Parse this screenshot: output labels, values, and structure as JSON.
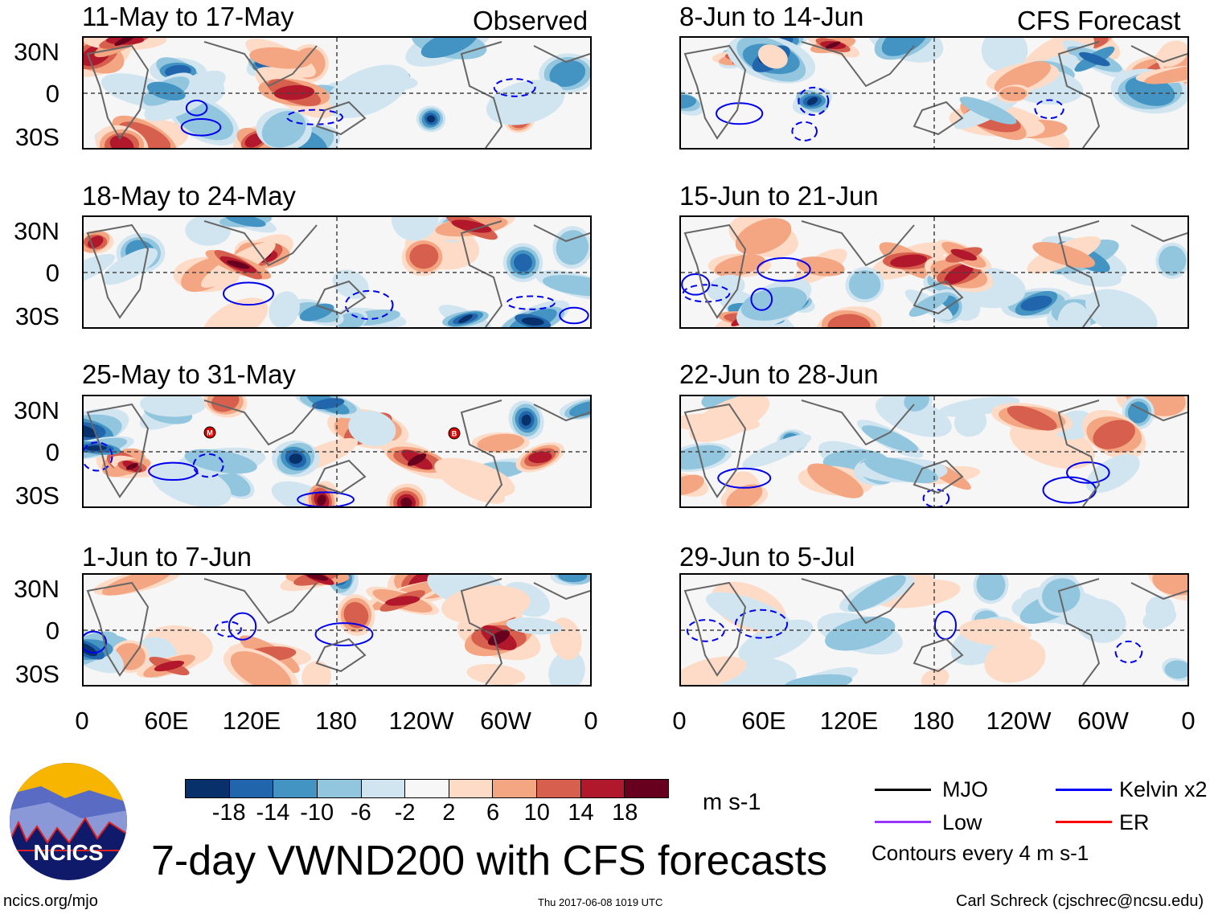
{
  "observed_label": "Observed",
  "forecast_label": "CFS Forecast",
  "panels_observed": [
    "11-May to 17-May",
    "18-May to 24-May",
    "25-May to 31-May",
    "1-Jun to 7-Jun"
  ],
  "panels_forecast": [
    "8-Jun to 14-Jun",
    "15-Jun to 21-Jun",
    "22-Jun to 28-Jun",
    "29-Jun to 5-Jul"
  ],
  "lat_labels": [
    "30N",
    "0",
    "30S"
  ],
  "lon_labels": [
    "0",
    "60E",
    "120E",
    "180",
    "120W",
    "60W",
    "0"
  ],
  "storm_markers": [
    "M",
    "B"
  ],
  "colorbar": {
    "colors": [
      "#08306b",
      "#2166ac",
      "#4393c3",
      "#92c5de",
      "#d1e5f0",
      "#f7f7f7",
      "#fddbc7",
      "#f4a582",
      "#d6604d",
      "#b2182b",
      "#67001f"
    ],
    "ticks": [
      "-18",
      "-14",
      "-10",
      "-6",
      "-2",
      "2",
      "6",
      "10",
      "14",
      "18"
    ],
    "units": "m s-1"
  },
  "legend": {
    "items": [
      {
        "label": "MJO",
        "color": "#000000"
      },
      {
        "label": "Kelvin x2",
        "color": "#0000ff"
      },
      {
        "label": "Low",
        "color": "#9933ff"
      },
      {
        "label": "ER",
        "color": "#ff0000"
      }
    ],
    "note": "Contours every 4 m s-1"
  },
  "title": "7-day VWND200 with CFS forecasts",
  "logo_text": "NCICS",
  "footer": {
    "url": "ncics.org/mjo",
    "timestamp": "Thu 2017-06-08 1019 UTC",
    "author": "Carl Schreck (cjschrec@ncsu.edu)"
  }
}
